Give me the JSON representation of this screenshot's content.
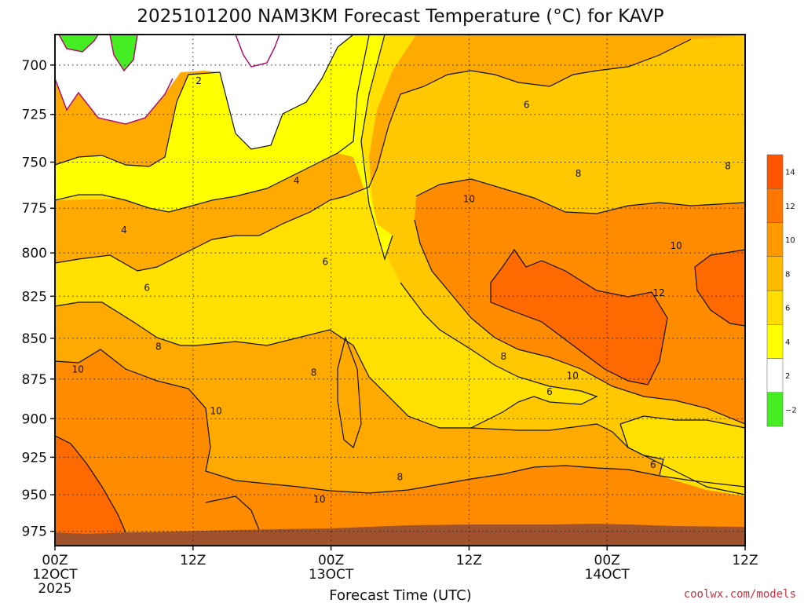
{
  "chart_data": {
    "type": "heatmap",
    "title": "2025101200 NAM3KM Forecast Temperature (°C) for KAVP",
    "xlabel": "Forecast Time (UTC)",
    "ylabel": "",
    "x_ticks": [
      {
        "label": "00Z",
        "sub": "12OCT",
        "sub2": "2025",
        "hour": 0
      },
      {
        "label": "12Z",
        "sub": "",
        "sub2": "",
        "hour": 12
      },
      {
        "label": "00Z",
        "sub": "13OCT",
        "sub2": "",
        "hour": 24
      },
      {
        "label": "12Z",
        "sub": "",
        "sub2": "",
        "hour": 36
      },
      {
        "label": "00Z",
        "sub": "14OCT",
        "sub2": "",
        "hour": 48
      },
      {
        "label": "12Z",
        "sub": "",
        "sub2": "",
        "hour": 60
      }
    ],
    "xlim_hours": [
      0,
      60
    ],
    "y_ticks": [
      "700",
      "725",
      "750",
      "775",
      "800",
      "825",
      "850",
      "875",
      "900",
      "925",
      "950",
      "975"
    ],
    "ylim_hpa": [
      985,
      685
    ],
    "y_scale": "log-pressure",
    "colorbar": {
      "levels": [
        -2,
        2,
        4,
        6,
        8,
        10,
        12,
        14
      ],
      "labels": [
        "−2",
        "2",
        "4",
        "6",
        "8",
        "10",
        "12",
        "14"
      ],
      "colors": [
        "#44ee22",
        "#ffffff",
        "#ffff00",
        "#ffdd00",
        "#ffbb00",
        "#ff9900",
        "#ff7700",
        "#ff5500"
      ]
    },
    "regions_note": "filled temperature bands: below 2C (white) in upper-left, rising to 12-14C (orange-red) near 850 hPa around 14OCT 00Z",
    "contour_labels": [
      {
        "text": "2",
        "hour": 12.5,
        "hpa": 708
      },
      {
        "text": "4",
        "hour": 21,
        "hpa": 760
      },
      {
        "text": "4",
        "hour": 6,
        "hpa": 787
      },
      {
        "text": "6",
        "hour": 23.5,
        "hpa": 805
      },
      {
        "text": "6",
        "hour": 8,
        "hpa": 820
      },
      {
        "text": "6",
        "hour": 41,
        "hpa": 720
      },
      {
        "text": "8",
        "hour": 45.5,
        "hpa": 756
      },
      {
        "text": "8",
        "hour": 58.5,
        "hpa": 752
      },
      {
        "text": "10",
        "hour": 36,
        "hpa": 770
      },
      {
        "text": "10",
        "hour": 54,
        "hpa": 796
      },
      {
        "text": "12",
        "hour": 52.5,
        "hpa": 823
      },
      {
        "text": "8",
        "hour": 9,
        "hpa": 855
      },
      {
        "text": "8",
        "hour": 22.5,
        "hpa": 871
      },
      {
        "text": "8",
        "hour": 39,
        "hpa": 861
      },
      {
        "text": "10",
        "hour": 2,
        "hpa": 869
      },
      {
        "text": "10",
        "hour": 14,
        "hpa": 895
      },
      {
        "text": "10",
        "hour": 45,
        "hpa": 873
      },
      {
        "text": "6",
        "hour": 43,
        "hpa": 883
      },
      {
        "text": "8",
        "hour": 30,
        "hpa": 938
      },
      {
        "text": "6",
        "hour": 52,
        "hpa": 930
      },
      {
        "text": "10",
        "hour": 23,
        "hpa": 953
      }
    ]
  },
  "footer": {
    "credit": "coolwx.com/models"
  }
}
